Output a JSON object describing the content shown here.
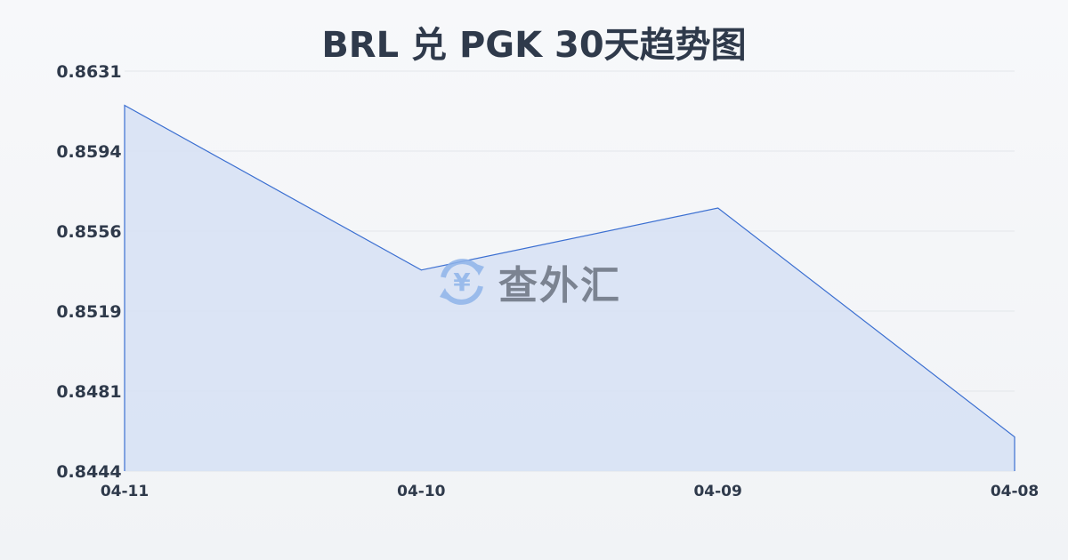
{
  "chart_data": {
    "type": "area",
    "title": "BRL 兑 PGK 30天趋势图",
    "categories": [
      "04-11",
      "04-10",
      "04-09",
      "04-08"
    ],
    "values": [
      0.8615,
      0.8538,
      0.8567,
      0.846
    ],
    "yticks": [
      "0.8631",
      "0.8594",
      "0.8556",
      "0.8519",
      "0.8481",
      "0.8444"
    ],
    "ylim": [
      0.8444,
      0.8631
    ],
    "grid": true,
    "colors": {
      "line": "#3b6fd1",
      "fill": "#d6e1f5",
      "grid": "#e3e6ea"
    }
  },
  "watermark": {
    "text": "查外汇",
    "icon": "yen-exchange-icon"
  }
}
